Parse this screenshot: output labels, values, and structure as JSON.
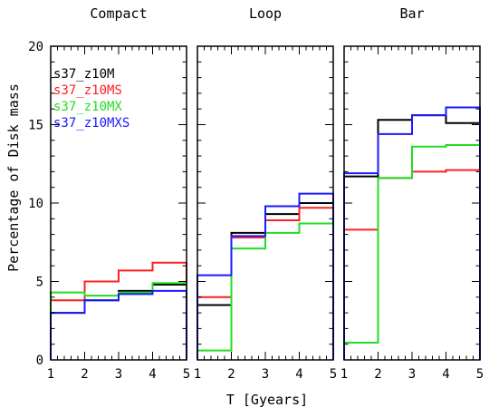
{
  "figure": {
    "xlabel": "T [Gyears]",
    "ylabel": "Percentage of Disk mass"
  },
  "chart_data": {
    "type": "line",
    "drawstyle": "steps",
    "xlim": [
      1,
      5
    ],
    "ylim": [
      0,
      20
    ],
    "x_ticks": [
      1,
      2,
      3,
      4,
      5
    ],
    "y_ticks": [
      0,
      5,
      10,
      15,
      20
    ],
    "x_bins": [
      [
        1,
        2
      ],
      [
        2,
        3
      ],
      [
        3,
        4
      ],
      [
        4,
        5
      ]
    ],
    "xlabel": "T [Gyears]",
    "ylabel": "Percentage of Disk mass",
    "legend_placement": "top-left of first panel",
    "series_styles": [
      {
        "name": "s37_z10M",
        "color": "#000000"
      },
      {
        "name": "s37_z10MS",
        "color": "#ff2020"
      },
      {
        "name": "s37_z10MX",
        "color": "#22dd22"
      },
      {
        "name": "s37_z10MXS",
        "color": "#1a1aff"
      }
    ],
    "panels": [
      {
        "title": "Compact",
        "series": [
          {
            "name": "s37_z10M",
            "values": [
              3.0,
              3.8,
              4.4,
              4.8
            ]
          },
          {
            "name": "s37_z10MS",
            "values": [
              3.8,
              5.0,
              5.7,
              6.2
            ]
          },
          {
            "name": "s37_z10MX",
            "values": [
              4.3,
              4.1,
              4.3,
              4.9
            ]
          },
          {
            "name": "s37_z10MXS",
            "values": [
              3.0,
              3.8,
              4.2,
              4.4
            ]
          }
        ]
      },
      {
        "title": "Loop",
        "series": [
          {
            "name": "s37_z10M",
            "values": [
              3.5,
              8.1,
              9.3,
              10.0
            ]
          },
          {
            "name": "s37_z10MS",
            "values": [
              4.0,
              7.8,
              8.9,
              9.7
            ]
          },
          {
            "name": "s37_z10MX",
            "values": [
              0.6,
              7.1,
              8.1,
              8.7
            ]
          },
          {
            "name": "s37_z10MXS",
            "values": [
              5.4,
              7.9,
              9.8,
              10.6
            ]
          }
        ]
      },
      {
        "title": "Bar",
        "series": [
          {
            "name": "s37_z10M",
            "values": [
              11.7,
              15.3,
              15.6,
              15.1
            ]
          },
          {
            "name": "s37_z10MS",
            "values": [
              8.3,
              11.6,
              12.0,
              12.1
            ]
          },
          {
            "name": "s37_z10MX",
            "values": [
              1.1,
              11.6,
              13.6,
              13.7
            ]
          },
          {
            "name": "s37_z10MXS",
            "values": [
              11.9,
              14.4,
              15.6,
              16.1
            ]
          }
        ]
      }
    ]
  }
}
